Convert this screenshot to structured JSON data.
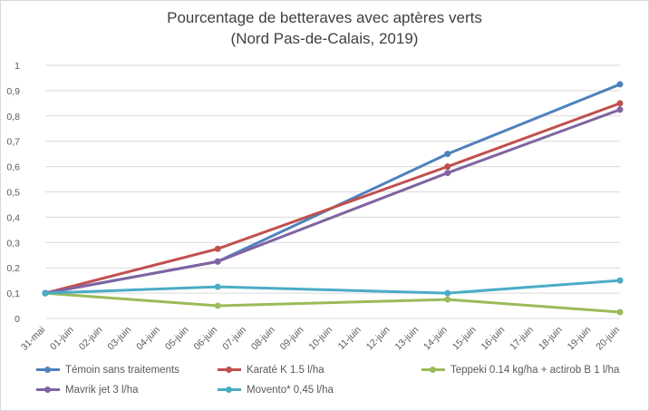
{
  "chart_data": {
    "type": "line",
    "title": [
      "Pourcentage de betteraves avec aptères verts",
      "(Nord Pas-de-Calais, 2019)"
    ],
    "xlabel": "",
    "ylabel": "",
    "ylim": [
      0,
      1
    ],
    "yticks": [
      "0",
      "0,1",
      "0,2",
      "0,3",
      "0,4",
      "0,5",
      "0,6",
      "0,7",
      "0,8",
      "0,9",
      "1"
    ],
    "categories": [
      "31-mai",
      "01-juin",
      "02-juin",
      "03-juin",
      "04-juin",
      "05-juin",
      "06-juin",
      "07-juin",
      "08-juin",
      "09-juin",
      "10-juin",
      "11-juin",
      "12-juin",
      "13-juin",
      "14-juin",
      "15-juin",
      "16-juin",
      "17-juin",
      "18-juin",
      "19-juin",
      "20-juin"
    ],
    "grid": true,
    "legend_position": "bottom",
    "series": [
      {
        "name": "Témoin sans traitements",
        "color": "#4f81bd",
        "points": [
          [
            0,
            0.1
          ],
          [
            6,
            0.225
          ],
          [
            14,
            0.65
          ],
          [
            20,
            0.925
          ]
        ]
      },
      {
        "name": "Karaté K 1.5 l/ha",
        "color": "#c0504d",
        "points": [
          [
            0,
            0.1
          ],
          [
            6,
            0.275
          ],
          [
            14,
            0.6
          ],
          [
            20,
            0.85
          ]
        ]
      },
      {
        "name": "Teppeki 0.14 kg/ha + actirob B 1 l/ha",
        "color": "#9bbb59",
        "points": [
          [
            0,
            0.1
          ],
          [
            6,
            0.05
          ],
          [
            14,
            0.075
          ],
          [
            20,
            0.025
          ]
        ]
      },
      {
        "name": "Mavrik jet 3 l/ha",
        "color": "#8064a2",
        "points": [
          [
            0,
            0.1
          ],
          [
            6,
            0.225
          ],
          [
            14,
            0.575
          ],
          [
            20,
            0.825
          ]
        ]
      },
      {
        "name": "Movento* 0,45 l/ha",
        "color": "#4bacc6",
        "points": [
          [
            0,
            0.1
          ],
          [
            6,
            0.125
          ],
          [
            14,
            0.1
          ],
          [
            20,
            0.15
          ]
        ]
      }
    ]
  }
}
